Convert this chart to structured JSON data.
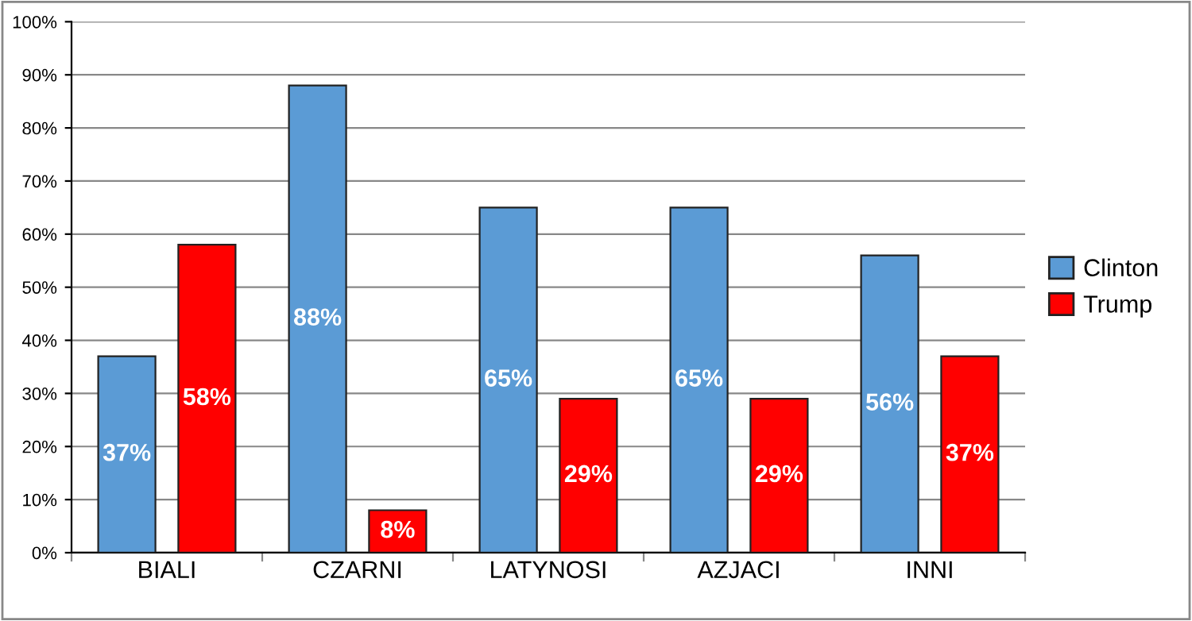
{
  "chart_data": {
    "type": "bar",
    "categories": [
      "BIALI",
      "CZARNI",
      "LATYNOSI",
      "AZJACI",
      "INNI"
    ],
    "series": [
      {
        "name": "Clinton",
        "color": "#5b9bd5",
        "values": [
          37,
          88,
          65,
          65,
          56
        ],
        "value_labels": [
          "37%",
          "88%",
          "65%",
          "65%",
          "56%"
        ]
      },
      {
        "name": "Trump",
        "color": "#ff0000",
        "values": [
          58,
          8,
          29,
          29,
          37
        ],
        "value_labels": [
          "58%",
          "8%",
          "29%",
          "29%",
          "37%"
        ]
      }
    ],
    "ylim": [
      0,
      100
    ],
    "yticks": [
      {
        "value": 0,
        "label": "0%"
      },
      {
        "value": 10,
        "label": "10%"
      },
      {
        "value": 20,
        "label": "20%"
      },
      {
        "value": 30,
        "label": "30%"
      },
      {
        "value": 40,
        "label": "40%"
      },
      {
        "value": 50,
        "label": "50%"
      },
      {
        "value": 60,
        "label": "60%"
      },
      {
        "value": 70,
        "label": "70%"
      },
      {
        "value": 80,
        "label": "80%"
      },
      {
        "value": 90,
        "label": "90%"
      },
      {
        "value": 100,
        "label": "100%"
      }
    ],
    "grid": "y",
    "legend": "right"
  }
}
